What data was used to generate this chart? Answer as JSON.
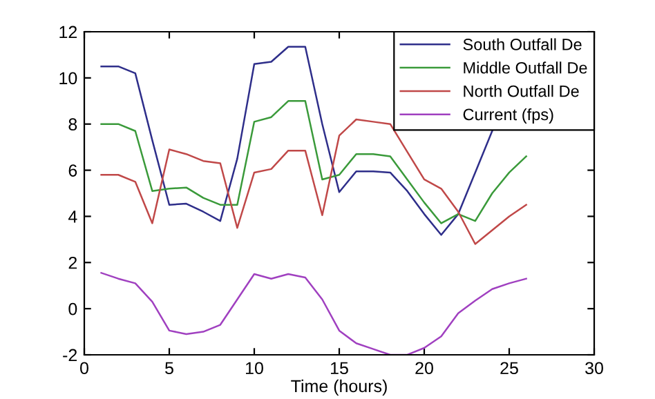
{
  "chart_data": {
    "type": "line",
    "xlabel": "Time (hours)",
    "x": [
      1,
      2,
      3,
      4,
      5,
      6,
      7,
      8,
      9,
      10,
      11,
      12,
      13,
      14,
      15,
      16,
      17,
      18,
      19,
      20,
      21,
      22,
      23,
      24,
      25,
      26
    ],
    "series": [
      {
        "name": "South Outfall De",
        "color": "#2e2e8a",
        "values": [
          10.5,
          10.5,
          10.2,
          7.3,
          4.5,
          4.55,
          4.2,
          3.8,
          6.5,
          10.6,
          10.7,
          11.35,
          11.35,
          8.0,
          5.05,
          5.95,
          5.95,
          5.9,
          5.1,
          4.1,
          3.2,
          4.1,
          5.9,
          7.7,
          null,
          null
        ]
      },
      {
        "name": "Middle Outfall De",
        "color": "#3a9a3a",
        "values": [
          8.0,
          8.0,
          7.7,
          5.1,
          5.2,
          5.25,
          4.8,
          4.5,
          4.5,
          8.1,
          8.3,
          9.0,
          9.0,
          5.6,
          5.8,
          6.7,
          6.7,
          6.6,
          5.6,
          4.6,
          3.7,
          4.1,
          3.8,
          5.0,
          5.9,
          6.6
        ]
      },
      {
        "name": "North Outfall De",
        "color": "#c04848",
        "values": [
          5.8,
          5.8,
          5.5,
          3.7,
          6.9,
          6.7,
          6.4,
          6.3,
          3.5,
          5.9,
          6.05,
          6.85,
          6.85,
          4.05,
          7.5,
          8.2,
          8.1,
          8.0,
          6.8,
          5.6,
          5.2,
          4.2,
          2.8,
          3.4,
          4.0,
          4.5
        ]
      },
      {
        "name": "Current (fps)",
        "color": "#a040c0",
        "values": [
          1.55,
          1.3,
          1.1,
          0.3,
          -0.95,
          -1.1,
          -1.0,
          -0.7,
          0.4,
          1.5,
          1.3,
          1.5,
          1.35,
          0.4,
          -0.95,
          -1.5,
          -1.75,
          -2.0,
          -2.0,
          -1.7,
          -1.2,
          -0.2,
          0.35,
          0.85,
          1.1,
          1.3
        ]
      }
    ],
    "xlim": [
      0,
      30
    ],
    "ylim": [
      -2,
      12
    ],
    "xticks": [
      0,
      5,
      10,
      15,
      20,
      25,
      30
    ],
    "yticks": [
      -2,
      0,
      2,
      4,
      6,
      8,
      10,
      12
    ],
    "grid": false,
    "legend": "top right"
  }
}
